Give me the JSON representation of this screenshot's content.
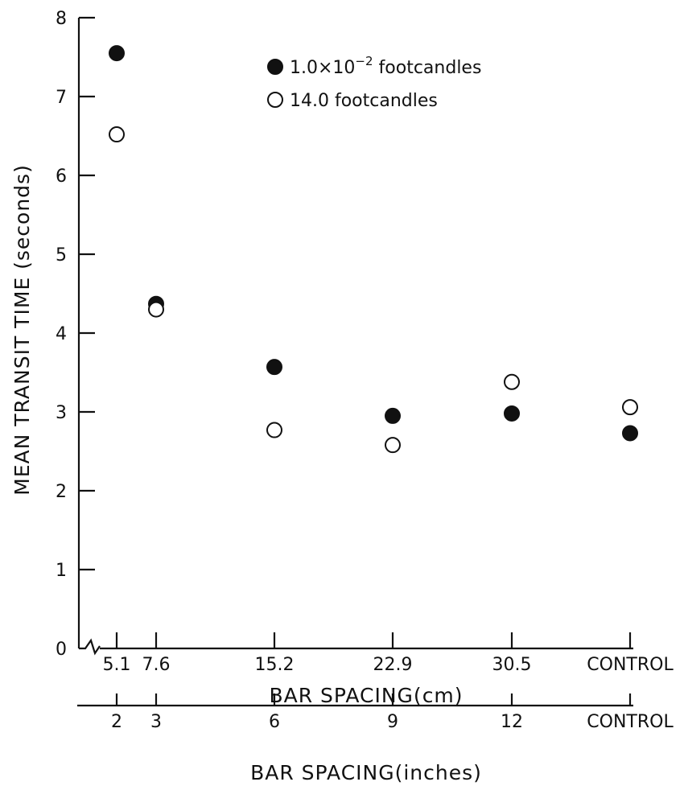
{
  "chart_data": {
    "type": "scatter",
    "ylabel": "MEAN TRANSIT TIME (seconds)",
    "xlabel": "BAR SPACING(cm)",
    "xlabel_secondary": "BAR SPACING(inches)",
    "ylim": [
      0,
      8
    ],
    "yticks": [
      "0",
      "1",
      "2",
      "3",
      "4",
      "5",
      "6",
      "7",
      "8"
    ],
    "categories_cm": [
      "5.1",
      "7.6",
      "15.2",
      "22.9",
      "30.5",
      "CONTROL"
    ],
    "categories_inches": [
      "2",
      "3",
      "6",
      "9",
      "12",
      "CONTROL"
    ],
    "legend_position": "top-right",
    "series": [
      {
        "name": "1.0×10⁻² footcandles",
        "marker": "filled-circle",
        "values": [
          7.55,
          4.37,
          3.57,
          2.95,
          2.98,
          2.73
        ]
      },
      {
        "name": "14.0 footcandles",
        "marker": "open-circle",
        "values": [
          6.52,
          4.3,
          2.77,
          2.58,
          3.38,
          3.06
        ]
      }
    ],
    "legend": {
      "filled_label_main": "1.0×10",
      "filled_label_exp": "−2",
      "filled_label_unit": " footcandles",
      "open_label": "14.0  footcandles"
    }
  }
}
